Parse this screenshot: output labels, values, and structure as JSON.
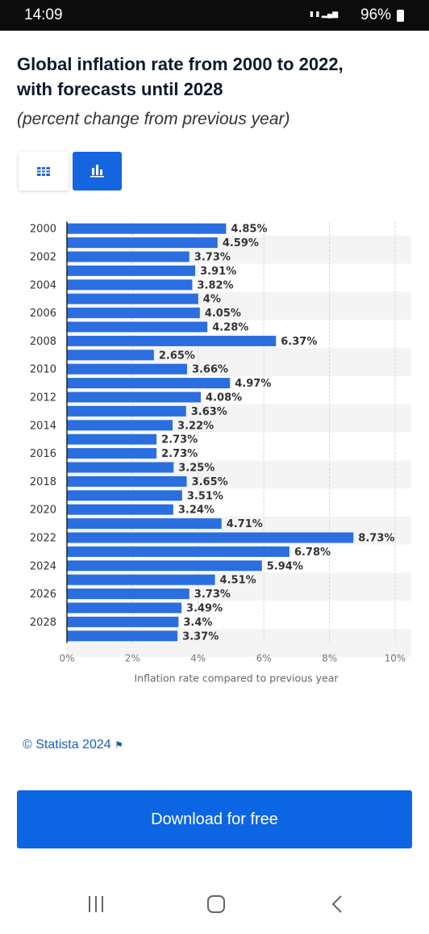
{
  "status_bar": {
    "time": "14:09",
    "battery": "96%"
  },
  "header": {
    "title_line1": "Global inflation rate from 2000 to 2022,",
    "title_line2": "with forecasts until 2028",
    "subtitle": "(percent change from previous year)"
  },
  "chart_data": {
    "type": "hbar",
    "categories": [
      "2000",
      null,
      "2002",
      null,
      "2004",
      null,
      "2006",
      null,
      "2008",
      null,
      "2010",
      null,
      "2012",
      null,
      "2014",
      null,
      "2016",
      null,
      "2018",
      null,
      "2020",
      null,
      "2022",
      null,
      "2024",
      null,
      "2026",
      null,
      "2028",
      null
    ],
    "values": [
      4.85,
      4.59,
      3.73,
      3.91,
      3.82,
      4,
      4.05,
      4.28,
      6.37,
      2.65,
      3.66,
      4.97,
      4.08,
      3.63,
      3.22,
      2.73,
      2.73,
      3.25,
      3.65,
      3.51,
      3.24,
      4.71,
      8.73,
      6.78,
      5.94,
      4.51,
      3.73,
      3.49,
      3.4,
      3.37
    ],
    "value_labels": [
      "4.85%",
      "4.59%",
      "3.73%",
      "3.91%",
      "3.82%",
      "4%",
      "4.05%",
      "4.28%",
      "6.37%",
      "2.65%",
      "3.66%",
      "4.97%",
      "4.08%",
      "3.63%",
      "3.22%",
      "2.73%",
      "2.73%",
      "3.25%",
      "3.65%",
      "3.51%",
      "3.24%",
      "4.71%",
      "8.73%",
      "6.78%",
      "5.94%",
      "4.51%",
      "3.73%",
      "3.49%",
      "3.4%",
      "3.37%"
    ],
    "color": "#2b6ee0",
    "xlim": [
      0,
      10
    ],
    "xticks": [
      {
        "value": 0,
        "label": "0%"
      },
      {
        "value": 2,
        "label": "2%"
      },
      {
        "value": 4,
        "label": "4%"
      },
      {
        "value": 6,
        "label": "6%"
      },
      {
        "value": 8,
        "label": "8%"
      },
      {
        "value": 10,
        "label": "10%"
      }
    ],
    "x_label": "Inflation rate compared to previous year",
    "grid": true
  },
  "footer": {
    "source": "© Statista 2024",
    "button": "Download for free"
  }
}
